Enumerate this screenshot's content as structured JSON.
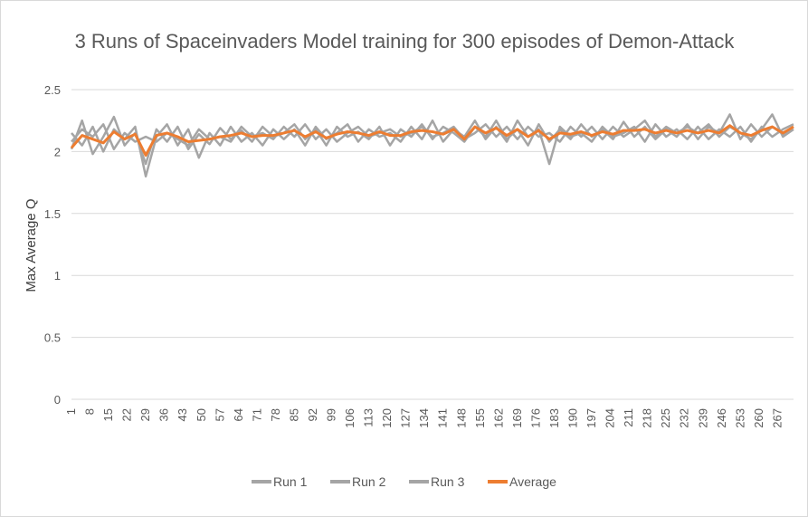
{
  "chart_data": {
    "type": "line",
    "title": "3 Runs of Spaceinvaders Model training for 300 episodes of Demon-Attack",
    "xlabel": "",
    "ylabel": "Max Average Q",
    "ylim": [
      0,
      2.5
    ],
    "yticks": [
      "0",
      "0.5",
      "1",
      "1.5",
      "2",
      "2.5"
    ],
    "xticks": [
      "1",
      "8",
      "15",
      "22",
      "29",
      "36",
      "43",
      "50",
      "57",
      "64",
      "71",
      "78",
      "85",
      "92",
      "99",
      "106",
      "113",
      "120",
      "127",
      "134",
      "141",
      "148",
      "155",
      "162",
      "169",
      "176",
      "183",
      "190",
      "197",
      "204",
      "211",
      "218",
      "225",
      "232",
      "239",
      "246",
      "253",
      "260",
      "267"
    ],
    "x_range": [
      1,
      273
    ],
    "grid": true,
    "legend_position": "bottom",
    "series": [
      {
        "name": "Run 1",
        "color": "#a5a5a5",
        "values": [
          [
            1,
            2.02
          ],
          [
            5,
            2.25
          ],
          [
            9,
            1.98
          ],
          [
            13,
            2.12
          ],
          [
            17,
            2.28
          ],
          [
            21,
            2.05
          ],
          [
            25,
            2.15
          ],
          [
            29,
            1.9
          ],
          [
            33,
            2.18
          ],
          [
            37,
            2.08
          ],
          [
            41,
            2.2
          ],
          [
            45,
            2.02
          ],
          [
            49,
            2.14
          ],
          [
            53,
            2.06
          ],
          [
            57,
            2.19
          ],
          [
            61,
            2.1
          ],
          [
            65,
            2.17
          ],
          [
            69,
            2.08
          ],
          [
            73,
            2.2
          ],
          [
            77,
            2.12
          ],
          [
            81,
            2.15
          ],
          [
            85,
            2.22
          ],
          [
            89,
            2.1
          ],
          [
            93,
            2.18
          ],
          [
            97,
            2.05
          ],
          [
            101,
            2.2
          ],
          [
            105,
            2.12
          ],
          [
            109,
            2.16
          ],
          [
            113,
            2.1
          ],
          [
            117,
            2.2
          ],
          [
            121,
            2.05
          ],
          [
            125,
            2.18
          ],
          [
            129,
            2.12
          ],
          [
            133,
            2.22
          ],
          [
            137,
            2.1
          ],
          [
            141,
            2.2
          ],
          [
            145,
            2.15
          ],
          [
            149,
            2.08
          ],
          [
            153,
            2.2
          ],
          [
            157,
            2.12
          ],
          [
            161,
            2.25
          ],
          [
            165,
            2.1
          ],
          [
            169,
            2.18
          ],
          [
            173,
            2.05
          ],
          [
            177,
            2.22
          ],
          [
            181,
            2.08
          ],
          [
            185,
            2.18
          ],
          [
            189,
            2.1
          ],
          [
            193,
            2.22
          ],
          [
            197,
            2.12
          ],
          [
            201,
            2.18
          ],
          [
            205,
            2.1
          ],
          [
            209,
            2.24
          ],
          [
            213,
            2.12
          ],
          [
            217,
            2.2
          ],
          [
            221,
            2.1
          ],
          [
            225,
            2.18
          ],
          [
            229,
            2.12
          ],
          [
            233,
            2.22
          ],
          [
            237,
            2.1
          ],
          [
            241,
            2.2
          ],
          [
            245,
            2.15
          ],
          [
            249,
            2.3
          ],
          [
            253,
            2.1
          ],
          [
            257,
            2.22
          ],
          [
            261,
            2.12
          ],
          [
            265,
            2.2
          ],
          [
            269,
            2.14
          ],
          [
            273,
            2.2
          ]
        ]
      },
      {
        "name": "Run 2",
        "color": "#a5a5a5",
        "values": [
          [
            1,
            2.15
          ],
          [
            5,
            2.05
          ],
          [
            9,
            2.2
          ],
          [
            13,
            2.0
          ],
          [
            17,
            2.18
          ],
          [
            21,
            2.1
          ],
          [
            25,
            2.2
          ],
          [
            29,
            1.8
          ],
          [
            33,
            2.12
          ],
          [
            37,
            2.22
          ],
          [
            41,
            2.05
          ],
          [
            45,
            2.18
          ],
          [
            49,
            1.95
          ],
          [
            53,
            2.15
          ],
          [
            57,
            2.05
          ],
          [
            61,
            2.2
          ],
          [
            65,
            2.08
          ],
          [
            69,
            2.15
          ],
          [
            73,
            2.05
          ],
          [
            77,
            2.18
          ],
          [
            81,
            2.1
          ],
          [
            85,
            2.18
          ],
          [
            89,
            2.05
          ],
          [
            93,
            2.2
          ],
          [
            97,
            2.1
          ],
          [
            101,
            2.15
          ],
          [
            105,
            2.22
          ],
          [
            109,
            2.08
          ],
          [
            113,
            2.18
          ],
          [
            117,
            2.12
          ],
          [
            121,
            2.15
          ],
          [
            125,
            2.08
          ],
          [
            129,
            2.2
          ],
          [
            133,
            2.1
          ],
          [
            137,
            2.25
          ],
          [
            141,
            2.08
          ],
          [
            145,
            2.18
          ],
          [
            149,
            2.12
          ],
          [
            153,
            2.25
          ],
          [
            157,
            2.1
          ],
          [
            161,
            2.2
          ],
          [
            165,
            2.08
          ],
          [
            169,
            2.25
          ],
          [
            173,
            2.12
          ],
          [
            177,
            2.18
          ],
          [
            181,
            1.9
          ],
          [
            185,
            2.2
          ],
          [
            189,
            2.12
          ],
          [
            193,
            2.15
          ],
          [
            197,
            2.08
          ],
          [
            201,
            2.2
          ],
          [
            205,
            2.12
          ],
          [
            209,
            2.15
          ],
          [
            213,
            2.2
          ],
          [
            217,
            2.08
          ],
          [
            221,
            2.22
          ],
          [
            225,
            2.12
          ],
          [
            229,
            2.18
          ],
          [
            233,
            2.1
          ],
          [
            237,
            2.2
          ],
          [
            241,
            2.1
          ],
          [
            245,
            2.18
          ],
          [
            249,
            2.12
          ],
          [
            253,
            2.2
          ],
          [
            257,
            2.08
          ],
          [
            261,
            2.2
          ],
          [
            265,
            2.12
          ],
          [
            269,
            2.18
          ],
          [
            273,
            2.22
          ]
        ]
      },
      {
        "name": "Run 3",
        "color": "#a5a5a5",
        "values": [
          [
            1,
            2.08
          ],
          [
            5,
            2.18
          ],
          [
            9,
            2.12
          ],
          [
            13,
            2.22
          ],
          [
            17,
            2.02
          ],
          [
            21,
            2.15
          ],
          [
            25,
            2.08
          ],
          [
            29,
            2.12
          ],
          [
            33,
            2.08
          ],
          [
            37,
            2.15
          ],
          [
            41,
            2.1
          ],
          [
            45,
            2.05
          ],
          [
            49,
            2.18
          ],
          [
            53,
            2.1
          ],
          [
            57,
            2.12
          ],
          [
            61,
            2.08
          ],
          [
            65,
            2.2
          ],
          [
            69,
            2.12
          ],
          [
            73,
            2.15
          ],
          [
            77,
            2.1
          ],
          [
            81,
            2.2
          ],
          [
            85,
            2.12
          ],
          [
            89,
            2.22
          ],
          [
            93,
            2.1
          ],
          [
            97,
            2.18
          ],
          [
            101,
            2.08
          ],
          [
            105,
            2.15
          ],
          [
            109,
            2.2
          ],
          [
            113,
            2.12
          ],
          [
            117,
            2.15
          ],
          [
            121,
            2.18
          ],
          [
            125,
            2.12
          ],
          [
            129,
            2.15
          ],
          [
            133,
            2.2
          ],
          [
            137,
            2.12
          ],
          [
            141,
            2.15
          ],
          [
            145,
            2.2
          ],
          [
            149,
            2.1
          ],
          [
            153,
            2.15
          ],
          [
            157,
            2.22
          ],
          [
            161,
            2.12
          ],
          [
            165,
            2.2
          ],
          [
            169,
            2.1
          ],
          [
            173,
            2.2
          ],
          [
            177,
            2.12
          ],
          [
            181,
            2.15
          ],
          [
            185,
            2.08
          ],
          [
            189,
            2.2
          ],
          [
            193,
            2.12
          ],
          [
            197,
            2.2
          ],
          [
            201,
            2.1
          ],
          [
            205,
            2.2
          ],
          [
            209,
            2.12
          ],
          [
            213,
            2.18
          ],
          [
            217,
            2.25
          ],
          [
            221,
            2.12
          ],
          [
            225,
            2.2
          ],
          [
            229,
            2.15
          ],
          [
            233,
            2.2
          ],
          [
            237,
            2.15
          ],
          [
            241,
            2.22
          ],
          [
            245,
            2.12
          ],
          [
            249,
            2.2
          ],
          [
            253,
            2.15
          ],
          [
            257,
            2.1
          ],
          [
            261,
            2.18
          ],
          [
            265,
            2.3
          ],
          [
            269,
            2.12
          ],
          [
            273,
            2.18
          ]
        ]
      },
      {
        "name": "Average",
        "color": "#ed7d31",
        "values": [
          [
            1,
            2.03
          ],
          [
            5,
            2.13
          ],
          [
            9,
            2.1
          ],
          [
            13,
            2.07
          ],
          [
            17,
            2.16
          ],
          [
            21,
            2.1
          ],
          [
            25,
            2.14
          ],
          [
            29,
            1.97
          ],
          [
            33,
            2.13
          ],
          [
            37,
            2.15
          ],
          [
            41,
            2.12
          ],
          [
            45,
            2.08
          ],
          [
            49,
            2.09
          ],
          [
            53,
            2.1
          ],
          [
            57,
            2.12
          ],
          [
            61,
            2.13
          ],
          [
            65,
            2.15
          ],
          [
            69,
            2.12
          ],
          [
            73,
            2.13
          ],
          [
            77,
            2.13
          ],
          [
            81,
            2.15
          ],
          [
            85,
            2.17
          ],
          [
            89,
            2.12
          ],
          [
            93,
            2.16
          ],
          [
            97,
            2.11
          ],
          [
            101,
            2.14
          ],
          [
            105,
            2.16
          ],
          [
            109,
            2.15
          ],
          [
            113,
            2.13
          ],
          [
            117,
            2.16
          ],
          [
            121,
            2.13
          ],
          [
            125,
            2.13
          ],
          [
            129,
            2.16
          ],
          [
            133,
            2.17
          ],
          [
            137,
            2.16
          ],
          [
            141,
            2.14
          ],
          [
            145,
            2.18
          ],
          [
            149,
            2.1
          ],
          [
            153,
            2.2
          ],
          [
            157,
            2.15
          ],
          [
            161,
            2.19
          ],
          [
            165,
            2.13
          ],
          [
            169,
            2.18
          ],
          [
            173,
            2.12
          ],
          [
            177,
            2.17
          ],
          [
            181,
            2.1
          ],
          [
            185,
            2.15
          ],
          [
            189,
            2.14
          ],
          [
            193,
            2.16
          ],
          [
            197,
            2.13
          ],
          [
            201,
            2.16
          ],
          [
            205,
            2.14
          ],
          [
            209,
            2.17
          ],
          [
            213,
            2.17
          ],
          [
            217,
            2.18
          ],
          [
            221,
            2.15
          ],
          [
            225,
            2.17
          ],
          [
            229,
            2.15
          ],
          [
            233,
            2.17
          ],
          [
            237,
            2.15
          ],
          [
            241,
            2.17
          ],
          [
            245,
            2.15
          ],
          [
            249,
            2.21
          ],
          [
            253,
            2.15
          ],
          [
            257,
            2.13
          ],
          [
            261,
            2.17
          ],
          [
            265,
            2.2
          ],
          [
            269,
            2.15
          ],
          [
            273,
            2.2
          ]
        ]
      }
    ]
  }
}
